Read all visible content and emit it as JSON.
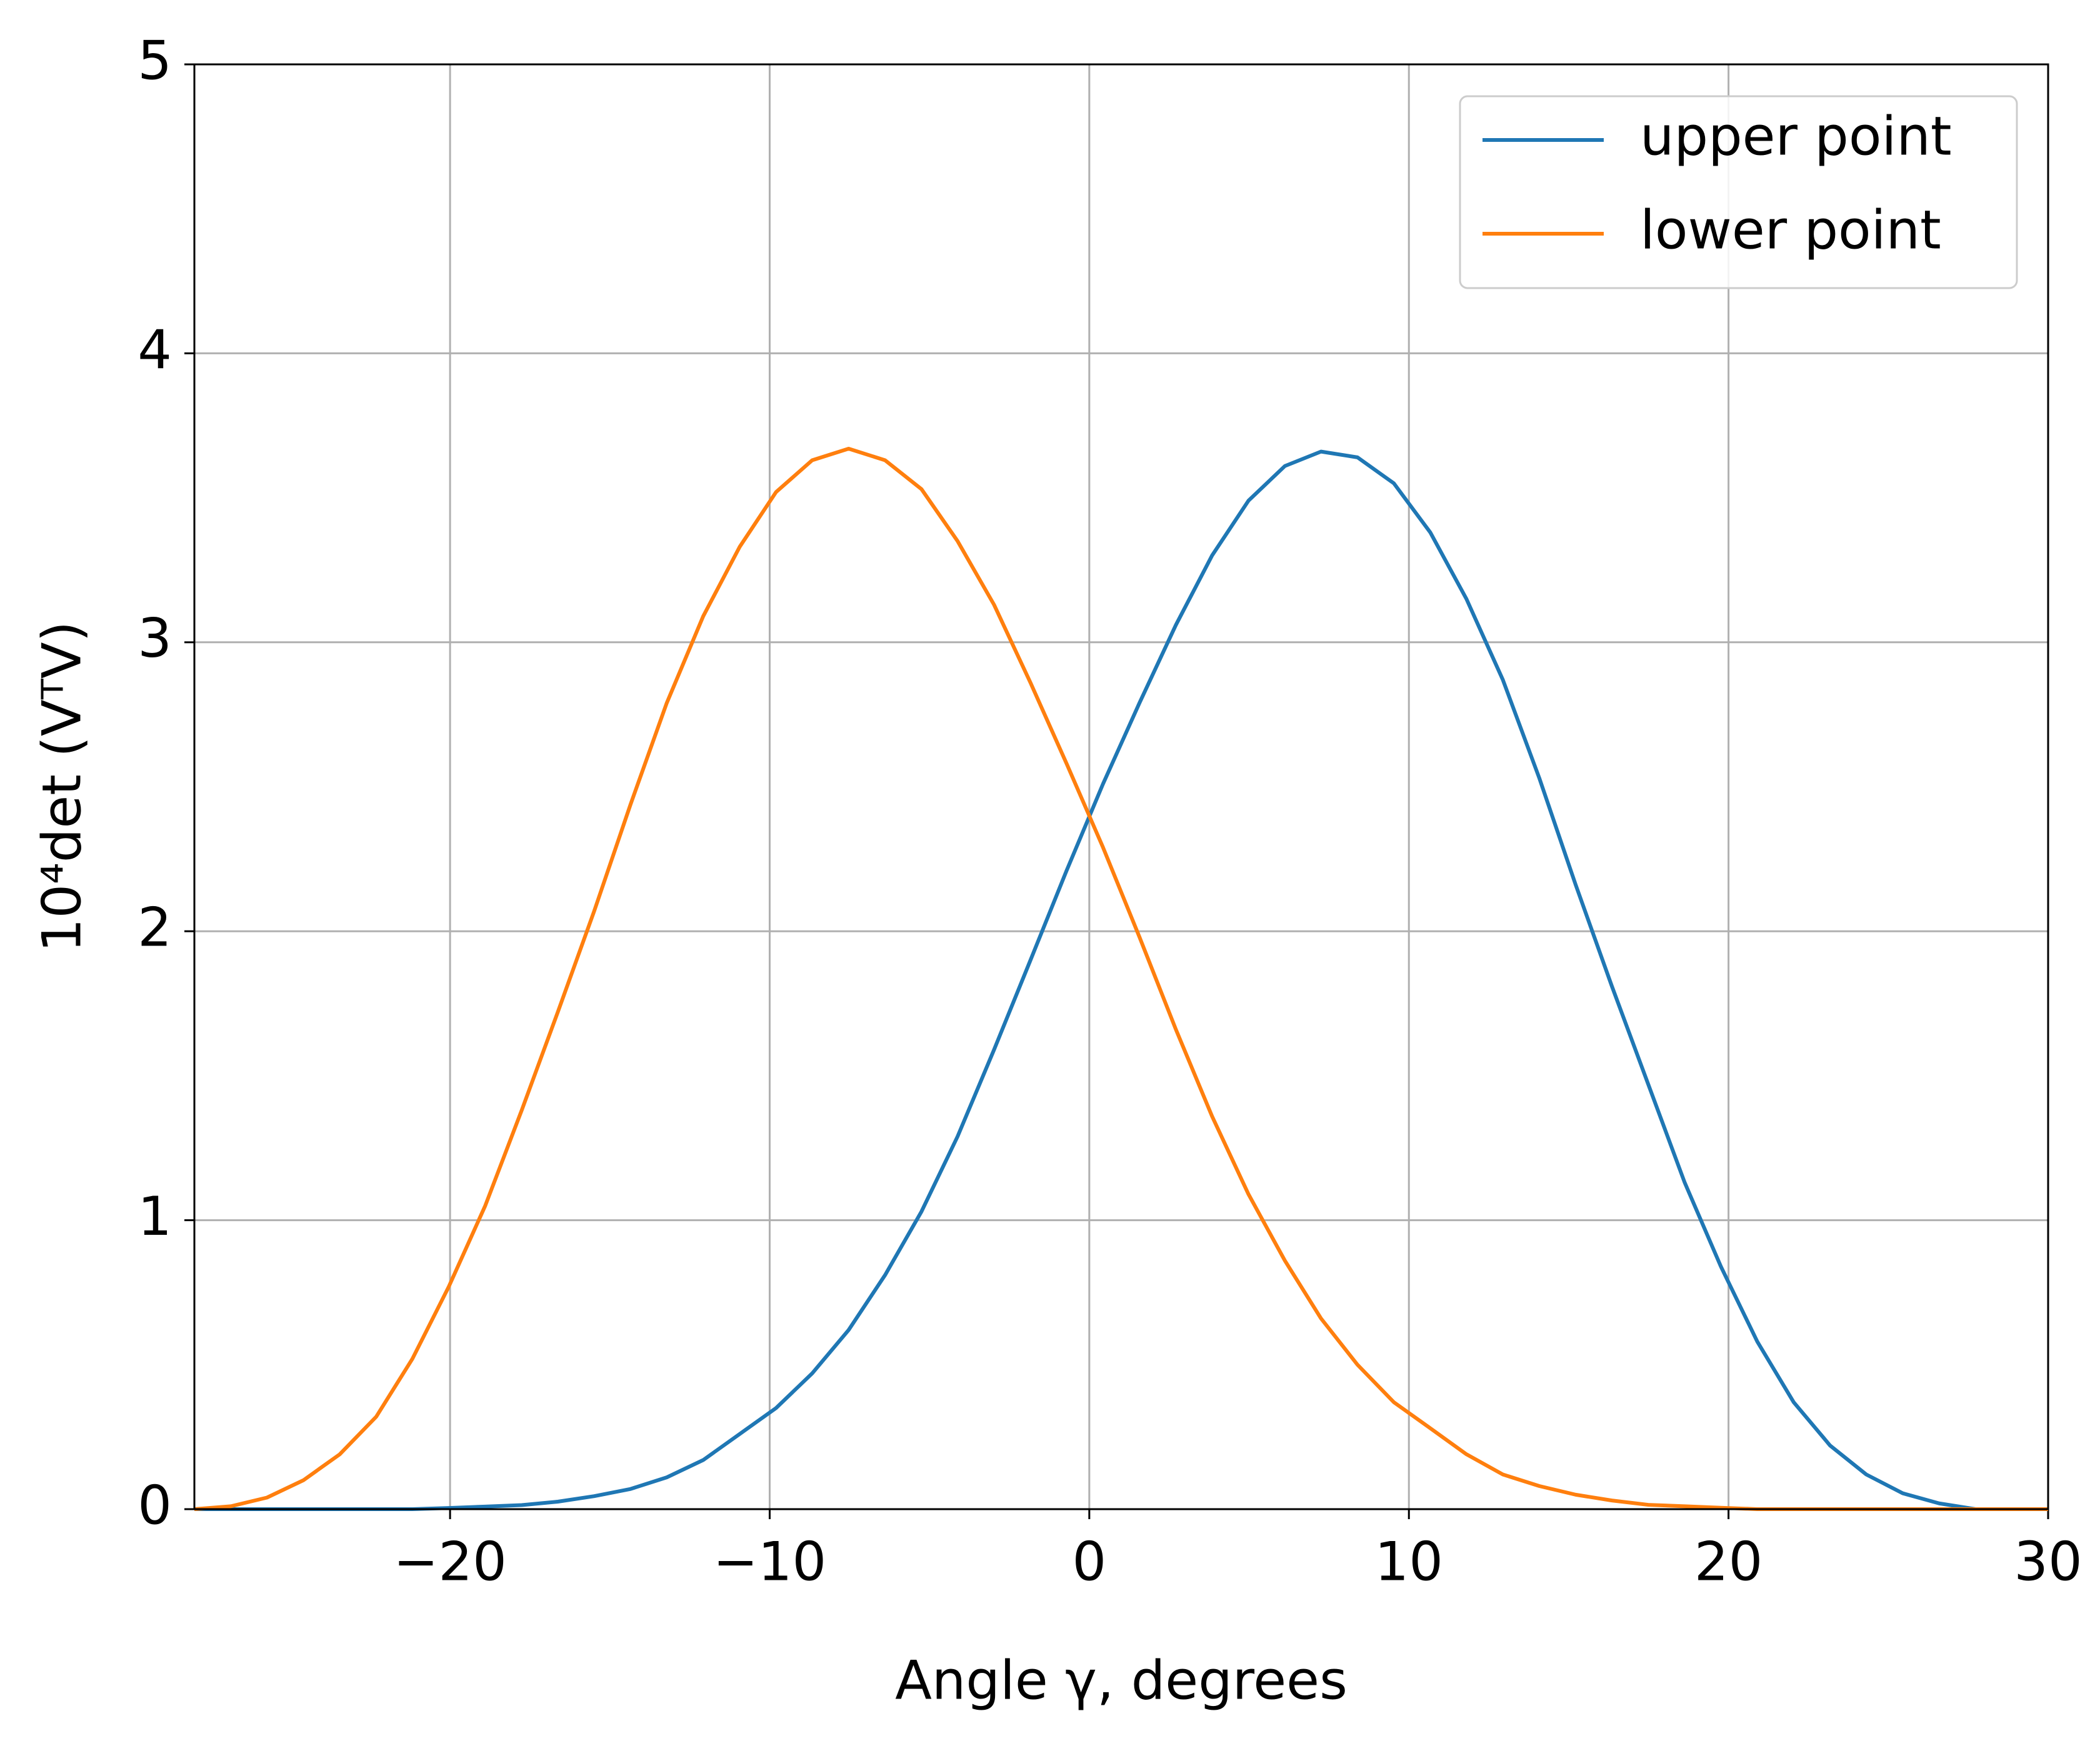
{
  "chart_data": {
    "type": "line",
    "xlabel": "Angle γ, degrees",
    "ylabel": "10⁴det (VᵀV)",
    "x": [
      -28,
      -26.86,
      -25.73,
      -24.59,
      -23.45,
      -22.31,
      -21.18,
      -20.04,
      -18.9,
      -17.76,
      -16.63,
      -15.49,
      -14.35,
      -13.22,
      -12.08,
      -10.94,
      -9.8,
      -8.67,
      -7.53,
      -6.39,
      -5.25,
      -4.12,
      -2.98,
      -1.84,
      -0.71,
      0.43,
      1.57,
      2.71,
      3.84,
      4.98,
      6.12,
      7.25,
      8.39,
      9.53,
      10.67,
      11.8,
      12.94,
      14.08,
      15.22,
      16.35,
      17.49,
      18.63,
      19.76,
      20.9,
      22.04,
      23.18,
      24.31,
      25.45,
      26.59,
      27.73,
      28.86,
      30
    ],
    "series": [
      {
        "name": "upper point",
        "color": "#1f77b4",
        "values": [
          0,
          0,
          0,
          0,
          0,
          0,
          0,
          0.004,
          0.009,
          0.014,
          0.026,
          0.045,
          0.07,
          0.11,
          0.17,
          0.26,
          0.35,
          0.47,
          0.62,
          0.81,
          1.03,
          1.29,
          1.59,
          1.9,
          2.21,
          2.51,
          2.79,
          3.06,
          3.3,
          3.49,
          3.61,
          3.66,
          3.64,
          3.55,
          3.38,
          3.15,
          2.87,
          2.53,
          2.16,
          1.81,
          1.47,
          1.13,
          0.84,
          0.58,
          0.37,
          0.22,
          0.12,
          0.055,
          0.02,
          0,
          0,
          0
        ]
      },
      {
        "name": "lower point",
        "color": "#ff7f0e",
        "values": [
          0,
          0.01,
          0.04,
          0.1,
          0.19,
          0.32,
          0.52,
          0.77,
          1.05,
          1.38,
          1.72,
          2.07,
          2.44,
          2.79,
          3.09,
          3.33,
          3.52,
          3.63,
          3.67,
          3.63,
          3.53,
          3.35,
          3.13,
          2.86,
          2.58,
          2.29,
          1.98,
          1.66,
          1.36,
          1.09,
          0.86,
          0.66,
          0.5,
          0.37,
          0.28,
          0.19,
          0.12,
          0.08,
          0.05,
          0.03,
          0.015,
          0.01,
          0.005,
          0,
          0,
          0,
          0,
          0,
          0,
          0,
          0,
          0
        ]
      }
    ],
    "xlim": [
      -28,
      30
    ],
    "xticks": [
      {
        "value": -20,
        "label": "−20"
      },
      {
        "value": -10,
        "label": "−10"
      },
      0,
      10,
      20,
      30
    ],
    "ylim": [
      0,
      5
    ],
    "yticks": [
      0,
      1,
      2,
      3,
      4,
      5
    ],
    "grid": true,
    "legend": "upper right"
  }
}
